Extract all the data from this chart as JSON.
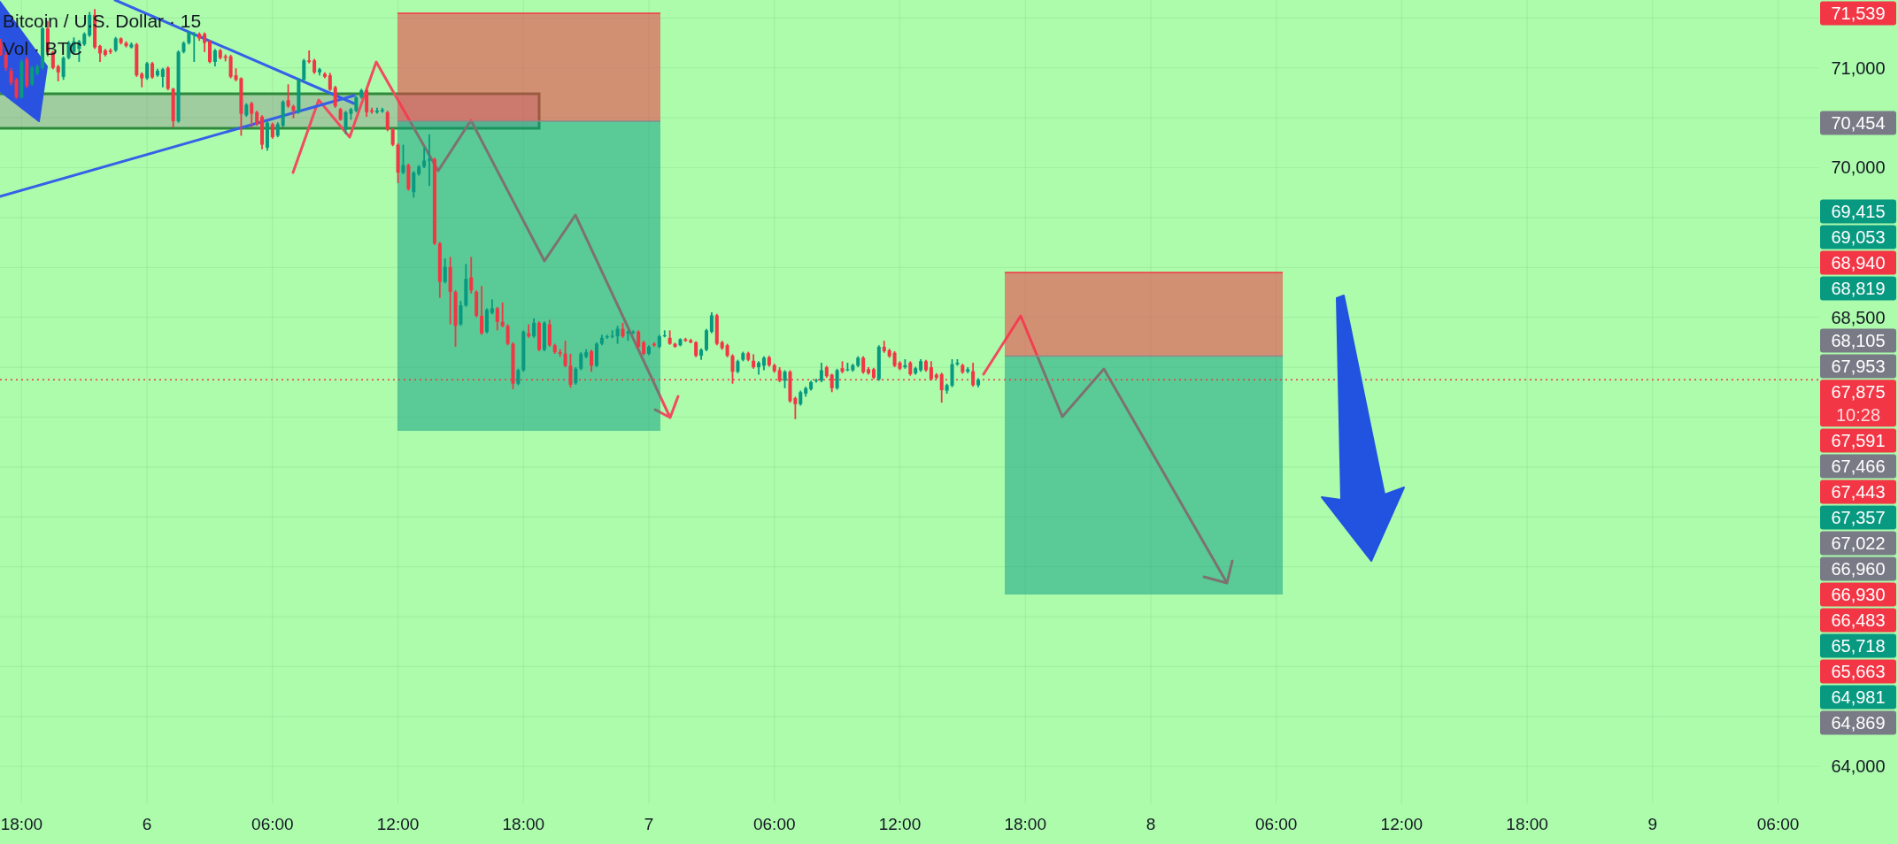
{
  "chart_data": {
    "type": "candlestick",
    "title": "Bitcoin / U.S. Dollar · 15",
    "subtitle": "Vol · BTC",
    "x": [
      "--06-05T17:00",
      "--06-05T17:15",
      "--06-05T17:30",
      "--06-05T17:45",
      "--06-05T18:00",
      "--06-05T18:15",
      "--06-05T18:30",
      "--06-05T18:45",
      "--06-05T19:00",
      "--06-05T19:15",
      "--06-05T19:30",
      "--06-05T19:45",
      "--06-05T20:00",
      "--06-05T20:15",
      "--06-05T20:30",
      "--06-05T20:45",
      "--06-05T21:00",
      "--06-05T21:15",
      "--06-05T21:30",
      "--06-05T21:45",
      "--06-05T22:00",
      "--06-05T22:15",
      "--06-05T22:30",
      "--06-05T22:45",
      "--06-05T23:00",
      "--06-05T23:15",
      "--06-05T23:30",
      "--06-05T23:45",
      "--06-06T00:00",
      "--06-06T00:15",
      "--06-06T00:30",
      "--06-06T00:45",
      "--06-06T01:00",
      "--06-06T01:15",
      "--06-06T01:30",
      "--06-06T01:45",
      "--06-06T02:00",
      "--06-06T02:15",
      "--06-06T02:30",
      "--06-06T02:45",
      "--06-06T03:00",
      "--06-06T03:15",
      "--06-06T03:30",
      "--06-06T03:45",
      "--06-06T04:00",
      "--06-06T04:15",
      "--06-06T04:30",
      "--06-06T04:45",
      "--06-06T05:00",
      "--06-06T05:15",
      "--06-06T05:30",
      "--06-06T05:45",
      "--06-06T06:00",
      "--06-06T06:15",
      "--06-06T06:30",
      "--06-06T06:45",
      "--06-06T07:00",
      "--06-06T07:15",
      "--06-06T07:30",
      "--06-06T07:45",
      "--06-06T08:00",
      "--06-06T08:15",
      "--06-06T08:30",
      "--06-06T08:45",
      "--06-06T09:00",
      "--06-06T09:15",
      "--06-06T09:30",
      "--06-06T09:45",
      "--06-06T10:00",
      "--06-06T10:15",
      "--06-06T10:30",
      "--06-06T10:45",
      "--06-06T11:00",
      "--06-06T11:15",
      "--06-06T11:30",
      "--06-06T11:45",
      "--06-06T12:00",
      "--06-06T12:15",
      "--06-06T12:30",
      "--06-06T12:45",
      "--06-06T13:00",
      "--06-06T13:15",
      "--06-06T13:30",
      "--06-06T13:45",
      "--06-06T14:00",
      "--06-06T14:15",
      "--06-06T14:30",
      "--06-06T14:45",
      "--06-06T15:00",
      "--06-06T15:15",
      "--06-06T15:30",
      "--06-06T15:45",
      "--06-06T16:00",
      "--06-06T16:15",
      "--06-06T16:30",
      "--06-06T16:45",
      "--06-06T17:00",
      "--06-06T17:15",
      "--06-06T17:30",
      "--06-06T17:45",
      "--06-06T18:00",
      "--06-06T18:15",
      "--06-06T18:30",
      "--06-06T18:45",
      "--06-06T19:00",
      "--06-06T19:15",
      "--06-06T19:30",
      "--06-06T19:45",
      "--06-06T20:00",
      "--06-06T20:15",
      "--06-06T20:30",
      "--06-06T20:45",
      "--06-06T21:00",
      "--06-06T21:15",
      "--06-06T21:30",
      "--06-06T21:45",
      "--06-06T22:00",
      "--06-06T22:15",
      "--06-06T22:30",
      "--06-06T22:45",
      "--06-06T23:00",
      "--06-06T23:15",
      "--06-06T23:30",
      "--06-06T23:45",
      "--06-07T00:00",
      "--06-07T00:15",
      "--06-07T00:30",
      "--06-07T00:45",
      "--06-07T01:00",
      "--06-07T01:15",
      "--06-07T01:30",
      "--06-07T01:45",
      "--06-07T02:00",
      "--06-07T02:15",
      "--06-07T02:30",
      "--06-07T02:45",
      "--06-07T03:00",
      "--06-07T03:15",
      "--06-07T03:30",
      "--06-07T03:45",
      "--06-07T04:00",
      "--06-07T04:15",
      "--06-07T04:30",
      "--06-07T04:45",
      "--06-07T05:00",
      "--06-07T05:15",
      "--06-07T05:30",
      "--06-07T05:45",
      "--06-07T06:00",
      "--06-07T06:15",
      "--06-07T06:30",
      "--06-07T06:45",
      "--06-07T07:00",
      "--06-07T07:15",
      "--06-07T07:30",
      "--06-07T07:45",
      "--06-07T08:00",
      "--06-07T08:15",
      "--06-07T08:30",
      "--06-07T08:45",
      "--06-07T09:00",
      "--06-07T09:15",
      "--06-07T09:30",
      "--06-07T09:45",
      "--06-07T10:00",
      "--06-07T10:15",
      "--06-07T10:30",
      "--06-07T10:45",
      "--06-07T11:00",
      "--06-07T11:15",
      "--06-07T11:30",
      "--06-07T11:45",
      "--06-07T12:00",
      "--06-07T12:15",
      "--06-07T12:30",
      "--06-07T12:45",
      "--06-07T13:00",
      "--06-07T13:15",
      "--06-07T13:30",
      "--06-07T13:45",
      "--06-07T14:00",
      "--06-07T14:15",
      "--06-07T14:30",
      "--06-07T14:45",
      "--06-07T15:00",
      "--06-07T15:15",
      "--06-07T15:30",
      "--06-07T15:45"
    ],
    "ohlc": [
      [
        71250,
        71290,
        71120,
        71130
      ],
      [
        71130,
        71160,
        70970,
        71000
      ],
      [
        70970,
        71000,
        70825,
        70850
      ],
      [
        70880,
        70900,
        70690,
        70705
      ],
      [
        70705,
        71085,
        70690,
        71060
      ],
      [
        71085,
        71110,
        70800,
        70820
      ],
      [
        70835,
        71020,
        70820,
        71000
      ],
      [
        70940,
        71035,
        70925,
        71015
      ],
      [
        71000,
        71410,
        70985,
        71395
      ],
      [
        71395,
        71470,
        71115,
        71160
      ],
      [
        71160,
        71170,
        70985,
        71000
      ],
      [
        71015,
        71030,
        70865,
        70955
      ],
      [
        70910,
        71115,
        70880,
        71100
      ],
      [
        71100,
        71270,
        71085,
        71250
      ],
      [
        71160,
        71305,
        71145,
        71265
      ],
      [
        71190,
        71280,
        71060,
        71265
      ],
      [
        71235,
        71355,
        71220,
        71340
      ],
      [
        71325,
        71560,
        71310,
        71530
      ],
      [
        71530,
        71590,
        71190,
        71205
      ],
      [
        71220,
        71230,
        71060,
        71145
      ],
      [
        71175,
        71190,
        71115,
        71130
      ],
      [
        71175,
        71195,
        71140,
        71160
      ],
      [
        71175,
        71310,
        71160,
        71295
      ],
      [
        71295,
        71305,
        71235,
        71250
      ],
      [
        71250,
        71265,
        71205,
        71220
      ],
      [
        71205,
        71255,
        71195,
        71235
      ],
      [
        71235,
        71250,
        70910,
        70925
      ],
      [
        70940,
        70955,
        70805,
        70895
      ],
      [
        70895,
        71060,
        70880,
        71045
      ],
      [
        71045,
        71060,
        70890,
        70905
      ],
      [
        70925,
        70990,
        70910,
        70970
      ],
      [
        70910,
        71000,
        70805,
        70985
      ],
      [
        71000,
        71015,
        70775,
        70790
      ],
      [
        70790,
        70800,
        70405,
        70465
      ],
      [
        70465,
        71175,
        70450,
        71160
      ],
      [
        71160,
        71265,
        71145,
        71250
      ],
      [
        71250,
        71370,
        71235,
        71355
      ],
      [
        71325,
        71360,
        71060,
        71340
      ],
      [
        71340,
        71355,
        71270,
        71295
      ],
      [
        71340,
        71355,
        71160,
        71250
      ],
      [
        71265,
        71280,
        71045,
        71060
      ],
      [
        71060,
        71190,
        71015,
        71175
      ],
      [
        71175,
        71190,
        71085,
        71100
      ],
      [
        71115,
        71135,
        71065,
        71100
      ],
      [
        71115,
        71130,
        70895,
        70910
      ],
      [
        70925,
        70995,
        70865,
        70880
      ],
      [
        70895,
        70905,
        70320,
        70540
      ],
      [
        70525,
        70645,
        70510,
        70630
      ],
      [
        70645,
        70660,
        70405,
        70540
      ],
      [
        70555,
        70570,
        70420,
        70435
      ],
      [
        70510,
        70525,
        70185,
        70230
      ],
      [
        70200,
        70470,
        70170,
        70450
      ],
      [
        70435,
        70450,
        70290,
        70305
      ],
      [
        70320,
        70455,
        70305,
        70435
      ],
      [
        70420,
        70675,
        70405,
        70660
      ],
      [
        70675,
        70835,
        70600,
        70615
      ],
      [
        70615,
        70630,
        70495,
        70570
      ],
      [
        70555,
        70895,
        70540,
        70880
      ],
      [
        70880,
        71090,
        70865,
        71075
      ],
      [
        71075,
        71175,
        71045,
        71060
      ],
      [
        71075,
        71090,
        70940,
        70955
      ],
      [
        70955,
        71000,
        70925,
        70985
      ],
      [
        70940,
        70955,
        70895,
        70910
      ],
      [
        70925,
        70950,
        70770,
        70780
      ],
      [
        70805,
        70820,
        70600,
        70615
      ],
      [
        70585,
        70600,
        70470,
        70480
      ],
      [
        70380,
        70570,
        70335,
        70555
      ],
      [
        70540,
        70600,
        70480,
        70585
      ],
      [
        70570,
        70720,
        70555,
        70705
      ],
      [
        70705,
        70790,
        70690,
        70775
      ],
      [
        70775,
        70790,
        70510,
        70555
      ],
      [
        70575,
        70600,
        70540,
        70560
      ],
      [
        70555,
        70600,
        70540,
        70570
      ],
      [
        70565,
        70600,
        70550,
        70580
      ],
      [
        70555,
        70570,
        70365,
        70380
      ],
      [
        70380,
        70395,
        70215,
        70230
      ],
      [
        70230,
        70245,
        69845,
        69950
      ],
      [
        69950,
        70230,
        69935,
        70025
      ],
      [
        70025,
        70040,
        69770,
        69785
      ],
      [
        69755,
        69965,
        69700,
        69950
      ],
      [
        69935,
        70025,
        69920,
        70010
      ],
      [
        70010,
        70200,
        69995,
        70070
      ],
      [
        70070,
        70335,
        69815,
        70085
      ],
      [
        70085,
        70100,
        69225,
        69240
      ],
      [
        69240,
        69255,
        68695,
        68855
      ],
      [
        68855,
        69090,
        68840,
        69005
      ],
      [
        69005,
        69105,
        68430,
        68755
      ],
      [
        68755,
        68770,
        68205,
        68415
      ],
      [
        68430,
        68665,
        68415,
        68620
      ],
      [
        68620,
        69035,
        68605,
        68885
      ],
      [
        68900,
        69105,
        68740,
        68770
      ],
      [
        68755,
        68770,
        68500,
        68515
      ],
      [
        68515,
        68815,
        68325,
        68340
      ],
      [
        68355,
        68590,
        68340,
        68575
      ],
      [
        68545,
        68680,
        68530,
        68590
      ],
      [
        68590,
        68605,
        68370,
        68455
      ],
      [
        68455,
        68650,
        68400,
        68415
      ],
      [
        68415,
        68430,
        68220,
        68235
      ],
      [
        68235,
        68250,
        67780,
        67835
      ],
      [
        67835,
        67985,
        67820,
        67970
      ],
      [
        67970,
        68370,
        67955,
        68355
      ],
      [
        68340,
        68430,
        68295,
        68310
      ],
      [
        68310,
        68490,
        68295,
        68445
      ],
      [
        68445,
        68460,
        68160,
        68175
      ],
      [
        68175,
        68460,
        68160,
        68445
      ],
      [
        68430,
        68475,
        68205,
        68220
      ],
      [
        68220,
        68235,
        68135,
        68150
      ],
      [
        68150,
        68180,
        68105,
        68135
      ],
      [
        68135,
        68265,
        68000,
        68015
      ],
      [
        68015,
        68135,
        67795,
        67825
      ],
      [
        67840,
        68000,
        67825,
        67985
      ],
      [
        67985,
        68150,
        67970,
        68135
      ],
      [
        68105,
        68180,
        68090,
        68150
      ],
      [
        68160,
        68175,
        67955,
        68015
      ],
      [
        68015,
        68250,
        68000,
        68235
      ],
      [
        68235,
        68325,
        68220,
        68295
      ],
      [
        68300,
        68325,
        68285,
        68310
      ],
      [
        68305,
        68370,
        68290,
        68315
      ],
      [
        68310,
        68415,
        68235,
        68385
      ],
      [
        68385,
        68445,
        68295,
        68310
      ],
      [
        68340,
        68370,
        68265,
        68355
      ],
      [
        68345,
        68370,
        68330,
        68355
      ],
      [
        68355,
        68370,
        68190,
        68205
      ],
      [
        68250,
        68265,
        68120,
        68135
      ],
      [
        68135,
        68220,
        68120,
        68205
      ],
      [
        68235,
        68250,
        68205,
        68220
      ],
      [
        68205,
        68325,
        68190,
        68310
      ],
      [
        68310,
        68370,
        68300,
        68320
      ],
      [
        68295,
        68370,
        68225,
        68235
      ],
      [
        68235,
        68245,
        68195,
        68205
      ],
      [
        68220,
        68290,
        68210,
        68280
      ],
      [
        68280,
        68295,
        68255,
        68265
      ],
      [
        68270,
        68285,
        68240,
        68250
      ],
      [
        68250,
        68260,
        68100,
        68115
      ],
      [
        68115,
        68190,
        68075,
        68175
      ],
      [
        68175,
        68385,
        68160,
        68370
      ],
      [
        68355,
        68550,
        68340,
        68520
      ],
      [
        68520,
        68535,
        68220,
        68235
      ],
      [
        68250,
        68265,
        68175,
        68190
      ],
      [
        68220,
        68235,
        68100,
        68115
      ],
      [
        68115,
        68130,
        67835,
        67955
      ],
      [
        67955,
        68075,
        67940,
        68060
      ],
      [
        68075,
        68155,
        68060,
        68140
      ],
      [
        68140,
        68155,
        68060,
        68075
      ],
      [
        68065,
        68130,
        67985,
        68000
      ],
      [
        68000,
        68060,
        67925,
        68045
      ],
      [
        68015,
        68110,
        67970,
        68095
      ],
      [
        68100,
        68115,
        68005,
        68020
      ],
      [
        68020,
        68035,
        67945,
        67960
      ],
      [
        67970,
        68000,
        67850,
        67865
      ],
      [
        67865,
        67970,
        67790,
        67955
      ],
      [
        67955,
        67970,
        67645,
        67660
      ],
      [
        67690,
        67705,
        67480,
        67630
      ],
      [
        67630,
        67765,
        67615,
        67750
      ],
      [
        67735,
        67805,
        67705,
        67790
      ],
      [
        67780,
        67865,
        67765,
        67850
      ],
      [
        67860,
        67885,
        67845,
        67870
      ],
      [
        67865,
        68045,
        67850,
        67970
      ],
      [
        68000,
        68015,
        67895,
        67910
      ],
      [
        67925,
        67935,
        67750,
        67790
      ],
      [
        67790,
        67985,
        67775,
        67970
      ],
      [
        67990,
        68060,
        67940,
        67955
      ],
      [
        67970,
        68045,
        67960,
        67980
      ],
      [
        67970,
        68035,
        67955,
        68020
      ],
      [
        68015,
        68110,
        68000,
        68095
      ],
      [
        68095,
        68110,
        67935,
        67950
      ],
      [
        67980,
        68000,
        67925,
        67940
      ],
      [
        67980,
        67995,
        67880,
        67895
      ],
      [
        67880,
        68220,
        67865,
        68205
      ],
      [
        68205,
        68265,
        68145,
        68160
      ],
      [
        68170,
        68185,
        68095,
        68110
      ],
      [
        68145,
        68160,
        68000,
        68015
      ],
      [
        68045,
        68060,
        67970,
        67985
      ],
      [
        68000,
        68080,
        67985,
        68020
      ],
      [
        68045,
        68060,
        67915,
        67930
      ],
      [
        67940,
        68005,
        67925,
        67990
      ],
      [
        67970,
        68080,
        67955,
        68060
      ],
      [
        68060,
        68075,
        67955,
        67970
      ],
      [
        68000,
        68060,
        67865,
        67880
      ],
      [
        67925,
        67940,
        67880,
        67895
      ],
      [
        67930,
        67945,
        67645,
        67770
      ],
      [
        67765,
        67835,
        67735,
        67820
      ],
      [
        67815,
        68080,
        67800,
        68030
      ],
      [
        68030,
        68080,
        68015,
        68045
      ],
      [
        68020,
        68035,
        67935,
        67950
      ],
      [
        67955,
        68000,
        67940,
        67980
      ],
      [
        67960,
        68045,
        67805,
        67820
      ],
      [
        67820,
        67890,
        67800,
        67875
      ]
    ],
    "xlim": [
      "--06-05T16:58",
      "--06-09T07:58"
    ],
    "ylim": [
      63630,
      71680
    ],
    "xticks": [
      {
        "value": "--06-05T18:00",
        "label": "18:00"
      },
      {
        "value": "--06-06",
        "label": "6"
      },
      {
        "value": "--06-06T06:00",
        "label": "06:00"
      },
      {
        "value": "--06-06T12:00",
        "label": "12:00"
      },
      {
        "value": "--06-06T18:00",
        "label": "18:00"
      },
      {
        "value": "--06-07",
        "label": "7"
      },
      {
        "value": "--06-07T06:00",
        "label": "06:00"
      },
      {
        "value": "--06-07T12:00",
        "label": "12:00"
      },
      {
        "value": "--06-07T18:00",
        "label": "18:00"
      },
      {
        "value": "--06-08",
        "label": "8"
      },
      {
        "value": "--06-08T06:00",
        "label": "06:00"
      },
      {
        "value": "--06-08T12:00",
        "label": "12:00"
      },
      {
        "value": "--06-08T18:00",
        "label": "18:00"
      },
      {
        "value": "--06-09",
        "label": "9"
      },
      {
        "value": "--06-09T06:00",
        "label": "06:00"
      }
    ],
    "yticks": [
      {
        "value": 64000,
        "label": "64,000"
      },
      {
        "value": 64500,
        "label": null
      },
      {
        "value": 65000,
        "label": null
      },
      {
        "value": 65500,
        "label": null
      },
      {
        "value": 66000,
        "label": null
      },
      {
        "value": 66500,
        "label": null
      },
      {
        "value": 67000,
        "label": null
      },
      {
        "value": 67500,
        "label": null
      },
      {
        "value": 68000,
        "label": null
      },
      {
        "value": 68500,
        "label": "68,500"
      },
      {
        "value": 69000,
        "label": null
      },
      {
        "value": 69500,
        "label": null
      },
      {
        "value": 70000,
        "label": "70,000"
      },
      {
        "value": 70500,
        "label": null
      },
      {
        "value": 71000,
        "label": "71,000"
      },
      {
        "value": 71500,
        "label": null
      }
    ],
    "grid": true,
    "ref_lines": [
      {
        "axis": "y",
        "value": 67875,
        "label": "67,875",
        "color": "#f23645",
        "line_style": "dotted"
      }
    ],
    "annotations": [
      "71,539",
      "70,454",
      "69,415",
      "69,053",
      "68,940",
      "68,819",
      "68,105",
      "67,953",
      "67,591",
      "67,466",
      "67,443",
      "67,357",
      "67,022",
      "66,960",
      "66,930",
      "66,483",
      "65,718",
      "65,663",
      "64,981",
      "64,869",
      "10:28"
    ]
  }
}
